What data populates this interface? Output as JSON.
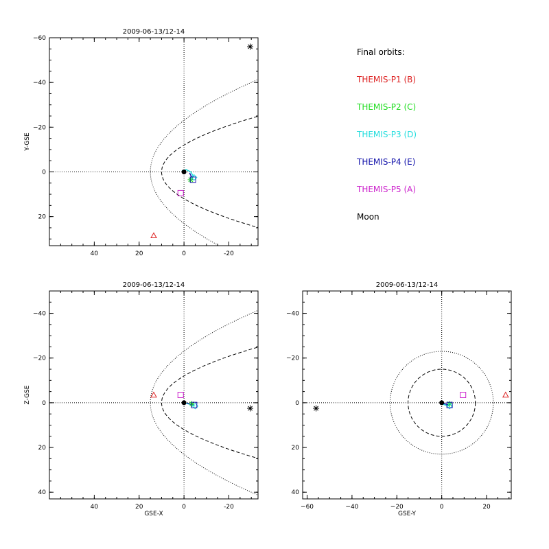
{
  "chart_data": [
    {
      "type": "scatter",
      "panel": "xy",
      "title": "2009-06-13/12-14",
      "xlabel": "",
      "ylabel": "Y-GSE",
      "xlim": [
        60,
        -33
      ],
      "ylim": [
        -60,
        33
      ],
      "xticks": [
        40,
        20,
        0,
        -20
      ],
      "yticks": [
        -60,
        -40,
        -20,
        0,
        20
      ],
      "grid": false,
      "crosshair": true,
      "boundaries": [
        {
          "name": "",
          "style": "dotted",
          "kind": "parabola",
          "nose": 15,
          "y_at_minus30": 40
        },
        {
          "name": "",
          "style": "dashed",
          "kind": "parabola",
          "nose": 10,
          "y_at_minus30": 24
        }
      ],
      "earth": [
        0,
        0
      ],
      "markers": [
        {
          "name": "THEMIS-P1 (B)",
          "symbol": "triangle",
          "color": "#dd2222",
          "x": 13.5,
          "y": 28.5
        },
        {
          "name": "THEMIS-P2 (C)",
          "symbol": "asterisk",
          "color": "#22dd22",
          "x": -3,
          "y": 3.5
        },
        {
          "name": "THEMIS-P3 (D)",
          "symbol": "diamond",
          "color": "#22dddd",
          "x": -4.5,
          "y": 2.5
        },
        {
          "name": "THEMIS-P4 (E)",
          "symbol": "square",
          "color": "#1111aa",
          "x": -4,
          "y": 3.5
        },
        {
          "name": "THEMIS-P5 (A)",
          "symbol": "square",
          "color": "#cc22cc",
          "x": 1.5,
          "y": 9.5
        },
        {
          "name": "Moon",
          "symbol": "asterisk",
          "color": "#000000",
          "x": -29.5,
          "y": -56
        }
      ],
      "tracks": [
        {
          "color": "#22dddd",
          "points": [
            [
              1,
              -0.5
            ],
            [
              -1,
              -1
            ],
            [
              -3,
              0
            ],
            [
              -4.5,
              2.5
            ]
          ]
        },
        {
          "color": "#1111aa",
          "points": [
            [
              -2.5,
              0.5
            ],
            [
              -4,
              3.5
            ]
          ]
        }
      ]
    },
    {
      "type": "scatter",
      "panel": "xz",
      "title": "2009-06-13/12-14",
      "xlabel": "GSE-X",
      "ylabel": "Z-GSE",
      "xlim": [
        60,
        -33
      ],
      "ylim": [
        -50,
        43
      ],
      "xticks": [
        40,
        20,
        0,
        -20
      ],
      "yticks": [
        -40,
        -20,
        0,
        20,
        40
      ],
      "grid": false,
      "crosshair": true,
      "boundaries": [
        {
          "name": "",
          "style": "dotted",
          "kind": "parabola",
          "nose": 15,
          "y_at_minus30": 40
        },
        {
          "name": "",
          "style": "dashed",
          "kind": "parabola",
          "nose": 10,
          "y_at_minus30": 24
        }
      ],
      "earth": [
        0,
        0
      ],
      "markers": [
        {
          "name": "THEMIS-P1 (B)",
          "symbol": "triangle",
          "color": "#dd2222",
          "x": 13.5,
          "y": -3.5
        },
        {
          "name": "THEMIS-P2 (C)",
          "symbol": "asterisk",
          "color": "#22dd22",
          "x": -3.5,
          "y": 0.5
        },
        {
          "name": "THEMIS-P3 (D)",
          "symbol": "diamond",
          "color": "#22dddd",
          "x": -5,
          "y": 1.5
        },
        {
          "name": "THEMIS-P4 (E)",
          "symbol": "square",
          "color": "#1111aa",
          "x": -4.5,
          "y": 1
        },
        {
          "name": "THEMIS-P5 (A)",
          "symbol": "square",
          "color": "#cc22cc",
          "x": 1.5,
          "y": -3.5
        },
        {
          "name": "Moon",
          "symbol": "asterisk",
          "color": "#000000",
          "x": -29.5,
          "y": 2.5
        }
      ],
      "tracks": [
        {
          "color": "#22dddd",
          "points": [
            [
              0.5,
              0
            ],
            [
              -2,
              0.5
            ],
            [
              -5,
              1.5
            ]
          ]
        },
        {
          "color": "#1111aa",
          "points": [
            [
              -1.5,
              0.2
            ],
            [
              -4.5,
              1
            ]
          ]
        }
      ]
    },
    {
      "type": "scatter",
      "panel": "yz",
      "title": "2009-06-13/12-14",
      "xlabel": "GSE-Y",
      "ylabel": "",
      "xlim": [
        -62,
        31
      ],
      "ylim": [
        -50,
        43
      ],
      "xticks": [
        -60,
        -40,
        -20,
        0,
        20
      ],
      "xtick_labels": [
        "−60",
        "−40",
        "−20",
        "0",
        "20"
      ],
      "yticks": [
        -40,
        -20,
        0,
        20,
        40
      ],
      "grid": false,
      "crosshair": true,
      "circles": [
        {
          "name": "",
          "style": "dotted",
          "radius": 23
        },
        {
          "name": "",
          "style": "dashed",
          "radius": 15
        }
      ],
      "earth": [
        0,
        0
      ],
      "markers": [
        {
          "name": "THEMIS-P1 (B)",
          "symbol": "triangle",
          "color": "#dd2222",
          "x": 28.5,
          "y": -3.5
        },
        {
          "name": "THEMIS-P2 (C)",
          "symbol": "asterisk",
          "color": "#22dd22",
          "x": 3.5,
          "y": 0.5
        },
        {
          "name": "THEMIS-P3 (D)",
          "symbol": "diamond",
          "color": "#22dddd",
          "x": 3.5,
          "y": 1.5
        },
        {
          "name": "THEMIS-P4 (E)",
          "symbol": "square",
          "color": "#1111aa",
          "x": 3.5,
          "y": 1
        },
        {
          "name": "THEMIS-P5 (A)",
          "symbol": "square",
          "color": "#cc22cc",
          "x": 9.5,
          "y": -3.5
        },
        {
          "name": "Moon",
          "symbol": "asterisk",
          "color": "#000000",
          "x": -56,
          "y": 2.5
        }
      ],
      "tracks": [
        {
          "color": "#22dddd",
          "points": [
            [
              -0.5,
              0.2
            ],
            [
              1.5,
              1
            ],
            [
              3.5,
              1.5
            ]
          ]
        },
        {
          "color": "#1111aa",
          "points": [
            [
              0.5,
              0.2
            ],
            [
              3.5,
              1
            ]
          ]
        }
      ]
    }
  ],
  "legend": {
    "heading": "Final orbits:",
    "items": [
      {
        "label": "THEMIS-P1 (B)",
        "color": "#dd2222"
      },
      {
        "label": "THEMIS-P2 (C)",
        "color": "#22dd22"
      },
      {
        "label": "THEMIS-P3 (D)",
        "color": "#22dddd"
      },
      {
        "label": "THEMIS-P4 (E)",
        "color": "#1111aa"
      },
      {
        "label": "THEMIS-P5 (A)",
        "color": "#cc22cc"
      },
      {
        "label": "Moon",
        "color": "#000000"
      }
    ]
  }
}
